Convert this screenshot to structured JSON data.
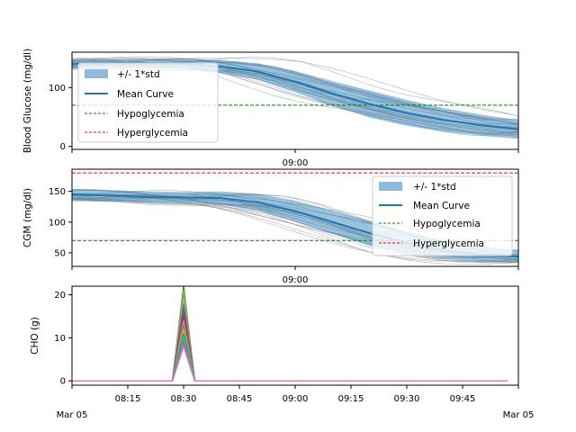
{
  "chart_data": [
    {
      "type": "line",
      "ylabel": "Blood Glucose (mg/dl)",
      "ylim": [
        -5,
        160
      ],
      "yticks": [
        0,
        100
      ],
      "xlim": [
        "08:00",
        "10:00"
      ],
      "xticks": [
        "09:00"
      ],
      "show_xlabels": true,
      "legend": "top-left",
      "mean": {
        "x": [
          "08:00",
          "08:10",
          "08:20",
          "08:30",
          "08:40",
          "08:50",
          "09:00",
          "09:10",
          "09:20",
          "09:30",
          "09:40",
          "09:50",
          "10:00"
        ],
        "y": [
          140,
          141,
          141,
          140,
          136,
          127,
          110,
          90,
          72,
          57,
          45,
          36,
          29
        ]
      },
      "std": [
        8,
        8,
        8,
        9,
        11,
        14,
        18,
        21,
        23,
        22,
        20,
        18,
        16
      ],
      "thresholds": {
        "hypo": 70,
        "hyper": 180
      },
      "legend_labels": [
        "+/- 1*std",
        "Mean Curve",
        "Hypoglycemia",
        "Hyperglycemia"
      ]
    },
    {
      "type": "line",
      "ylabel": "CGM (mg/dl)",
      "ylim": [
        28,
        186
      ],
      "yticks": [
        50,
        100,
        150
      ],
      "xlim": [
        "08:00",
        "10:00"
      ],
      "xticks": [
        "09:00"
      ],
      "show_xlabels": true,
      "legend": "top-right",
      "mean": {
        "x": [
          "08:00",
          "08:10",
          "08:20",
          "08:30",
          "08:40",
          "08:50",
          "09:00",
          "09:10",
          "09:20",
          "09:30",
          "09:40",
          "09:50",
          "10:00"
        ],
        "y": [
          145,
          143,
          141,
          140,
          139,
          132,
          118,
          100,
          82,
          66,
          54,
          47,
          44
        ]
      },
      "std": [
        9,
        9,
        9,
        9,
        11,
        14,
        17,
        19,
        20,
        18,
        15,
        12,
        10
      ],
      "thresholds": {
        "hypo": 70,
        "hyper": 180
      },
      "legend_labels": [
        "+/- 1*std",
        "Mean Curve",
        "Hypoglycemia",
        "Hyperglycemia"
      ]
    },
    {
      "type": "line",
      "ylabel": "CHO (g)",
      "ylim": [
        -1,
        22
      ],
      "yticks": [
        0,
        10,
        20
      ],
      "xlim": [
        "08:00",
        "10:00"
      ],
      "xticks": [
        "08:15",
        "08:30",
        "08:45",
        "09:00",
        "09:15",
        "09:30",
        "09:45"
      ],
      "date_left": "Mar 05",
      "date_right": "Mar 05",
      "peak_x": [
        "08:27",
        "08:30",
        "08:33"
      ],
      "end_x": "09:57",
      "peaks": [
        22,
        21,
        20,
        19,
        18,
        17,
        16,
        15,
        14,
        13,
        12,
        11,
        10,
        9,
        8
      ],
      "colors": [
        "#2ca02c",
        "#ff7f0e",
        "#17becf",
        "#bcbd22",
        "#9467bd",
        "#8c564b",
        "#1f77b4",
        "#d62728",
        "#e377c2",
        "#7f7f7f",
        "#bcbd22",
        "#2ca02c",
        "#17becf",
        "#9467bd",
        "#e377c2"
      ]
    }
  ],
  "colors": {
    "mean": "#1f77b4",
    "band": "#1f77b4",
    "traces": "#9a9a9a",
    "hypo": "#008000",
    "hyper": "#ff0000"
  }
}
